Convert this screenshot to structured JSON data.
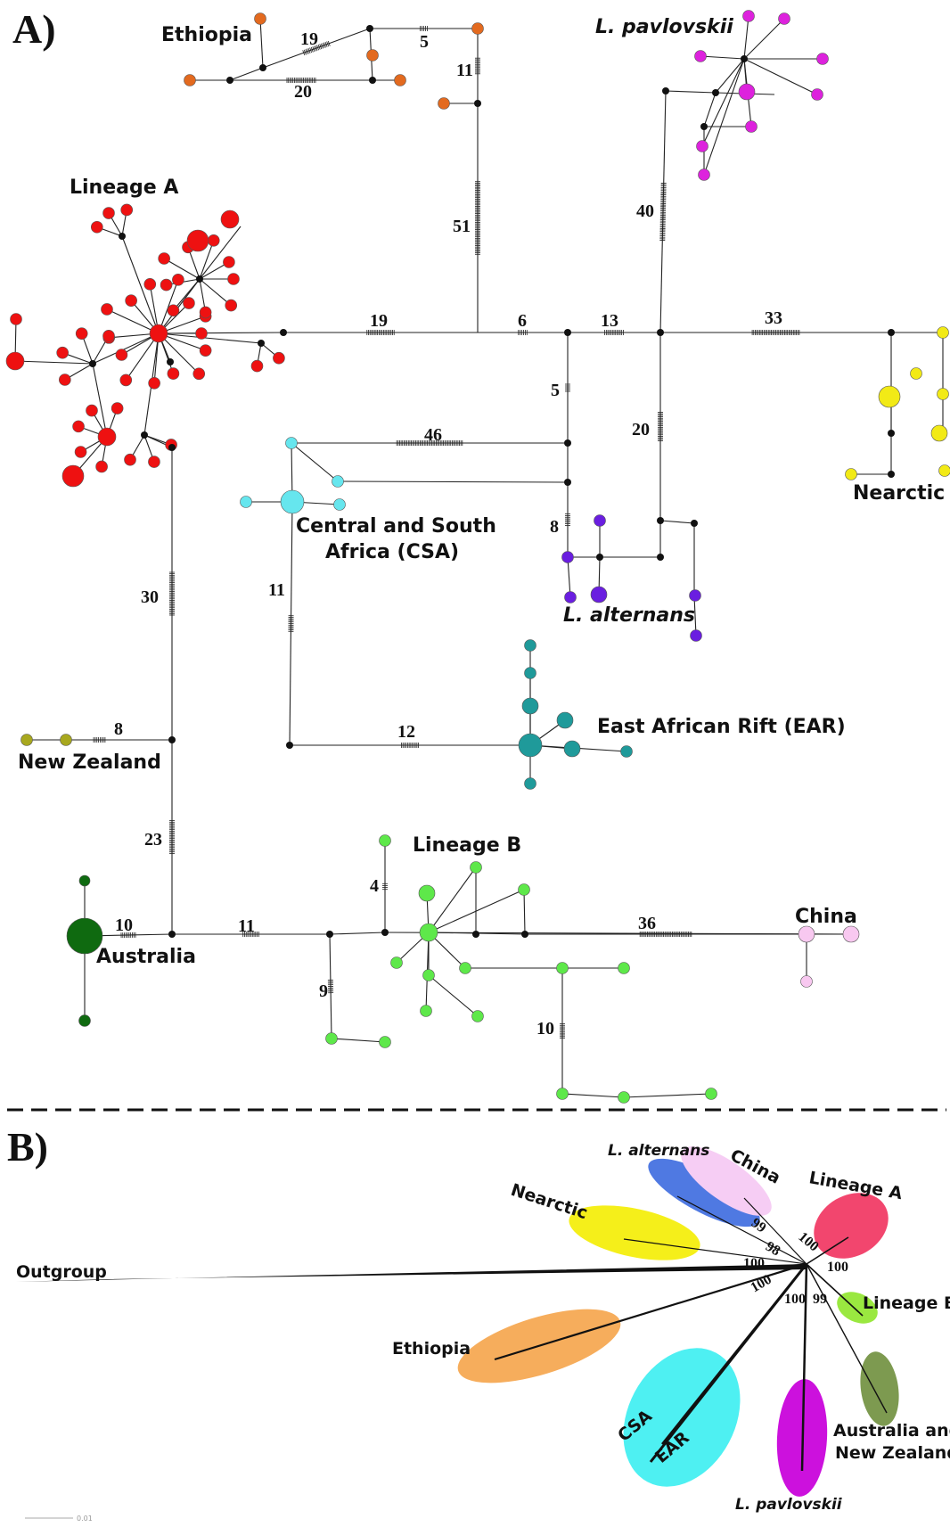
{
  "panels": {
    "a": {
      "label": "A)",
      "groups": [
        {
          "key": "ethiopia",
          "label": "Ethiopia",
          "style": "normal",
          "color": "#e36a1f"
        },
        {
          "key": "pavlovskii",
          "label": "L. pavlovskii",
          "style": "italic",
          "color": "#dd22dd"
        },
        {
          "key": "lineage_a",
          "label": "Lineage A",
          "style": "normal",
          "color": "#ee1111"
        },
        {
          "key": "nearctic",
          "label": "Nearctic",
          "style": "normal",
          "color": "#f2ea16"
        },
        {
          "key": "csa1",
          "label": "Central and South",
          "style": "normal",
          "color": "#66e6ee"
        },
        {
          "key": "csa2",
          "label": "Africa (CSA)",
          "style": "normal",
          "color": "#66e6ee"
        },
        {
          "key": "alternans",
          "label": "L. alternans",
          "style": "italic",
          "color": "#6a1ee0"
        },
        {
          "key": "ear",
          "label": "East African Rift (EAR)",
          "style": "normal",
          "color": "#1f9a9a"
        },
        {
          "key": "new_zealand",
          "label": "New Zealand",
          "style": "normal",
          "color": "#a8a81e"
        },
        {
          "key": "lineage_b",
          "label": "Lineage B",
          "style": "normal",
          "color": "#5ee84a"
        },
        {
          "key": "australia",
          "label": "Australia",
          "style": "normal",
          "color": "#0f6a10"
        },
        {
          "key": "china",
          "label": "China",
          "style": "normal",
          "color": "#f8c8f0"
        }
      ],
      "mutation_counts": [
        "19",
        "5",
        "20",
        "11",
        "51",
        "40",
        "19",
        "6",
        "13",
        "33",
        "5",
        "20",
        "46",
        "8",
        "11",
        "30",
        "12",
        "8",
        "23",
        "4",
        "10",
        "11",
        "9",
        "36",
        "10"
      ]
    },
    "b": {
      "label": "B)",
      "outgroup": "Outgroup",
      "groups": [
        {
          "key": "alternans",
          "label": "L. alternans",
          "color": "#4f79e2"
        },
        {
          "key": "china",
          "label": "China",
          "color": "#f6cdf4"
        },
        {
          "key": "lineage_a",
          "label": "Lineage A",
          "color": "#f2466e"
        },
        {
          "key": "nearctic",
          "label": "Nearctic",
          "color": "#f5ef1a"
        },
        {
          "key": "lineage_b",
          "label": "Lineage B",
          "color": "#9ae840"
        },
        {
          "key": "ethiopia",
          "label": "Ethiopia",
          "color": "#f6ad5c"
        },
        {
          "key": "csa",
          "label": "CSA",
          "color": "#4ef0f2"
        },
        {
          "key": "ear",
          "label": "EAR",
          "color": "#4ef0f2"
        },
        {
          "key": "pavlovskii",
          "label": "L. pavlovskii",
          "color": "#cc11dd"
        },
        {
          "key": "aus_nz_1",
          "label": "Australia and",
          "color": "#7d9a50"
        },
        {
          "key": "aus_nz_2",
          "label": "New Zealand",
          "color": "#7d9a50"
        }
      ],
      "bootstrap": [
        "99",
        "98",
        "100",
        "100",
        "100",
        "100",
        "100",
        "99"
      ],
      "scale_label": "0.01"
    }
  }
}
